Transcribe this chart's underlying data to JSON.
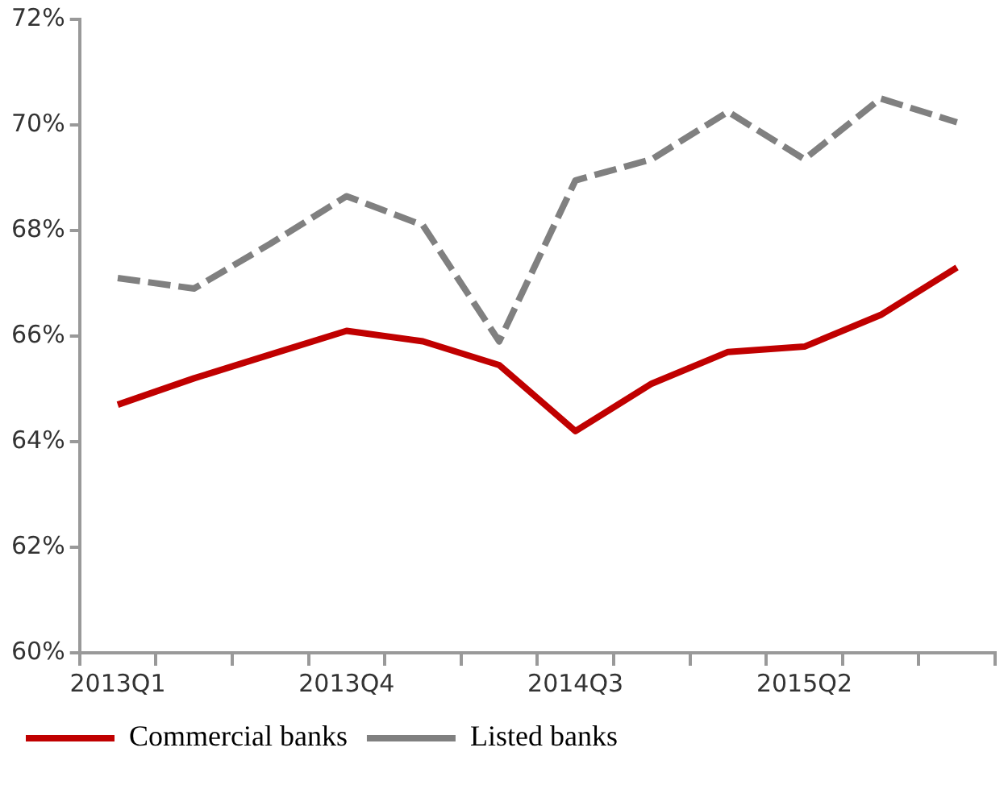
{
  "chart_data": {
    "type": "line",
    "categories": [
      "2013Q1",
      null,
      null,
      "2013Q4",
      null,
      null,
      "2014Q3",
      null,
      null,
      "2015Q2",
      null,
      null
    ],
    "series": [
      {
        "name": "Commercial banks",
        "color": "#c00000",
        "values": [
          64.7,
          65.2,
          65.65,
          66.1,
          65.9,
          65.45,
          64.2,
          65.1,
          65.7,
          65.8,
          66.4,
          67.3
        ]
      },
      {
        "name": "Listed banks",
        "color": "#808080",
        "line_style": "dashed",
        "values": [
          67.1,
          66.9,
          67.75,
          68.65,
          68.1,
          65.9,
          68.95,
          69.35,
          70.25,
          69.35,
          70.5,
          70.05
        ]
      }
    ],
    "ylim": [
      60,
      72
    ],
    "yticks": [
      {
        "value": 60,
        "label": "60%"
      },
      {
        "value": 62,
        "label": "62%"
      },
      {
        "value": 64,
        "label": "64%"
      },
      {
        "value": 66,
        "label": "66%"
      },
      {
        "value": 68,
        "label": "68%"
      },
      {
        "value": 70,
        "label": "70%"
      },
      {
        "value": 72,
        "label": "72%"
      }
    ],
    "grid": false,
    "legend": "bottom",
    "marker": "none"
  }
}
